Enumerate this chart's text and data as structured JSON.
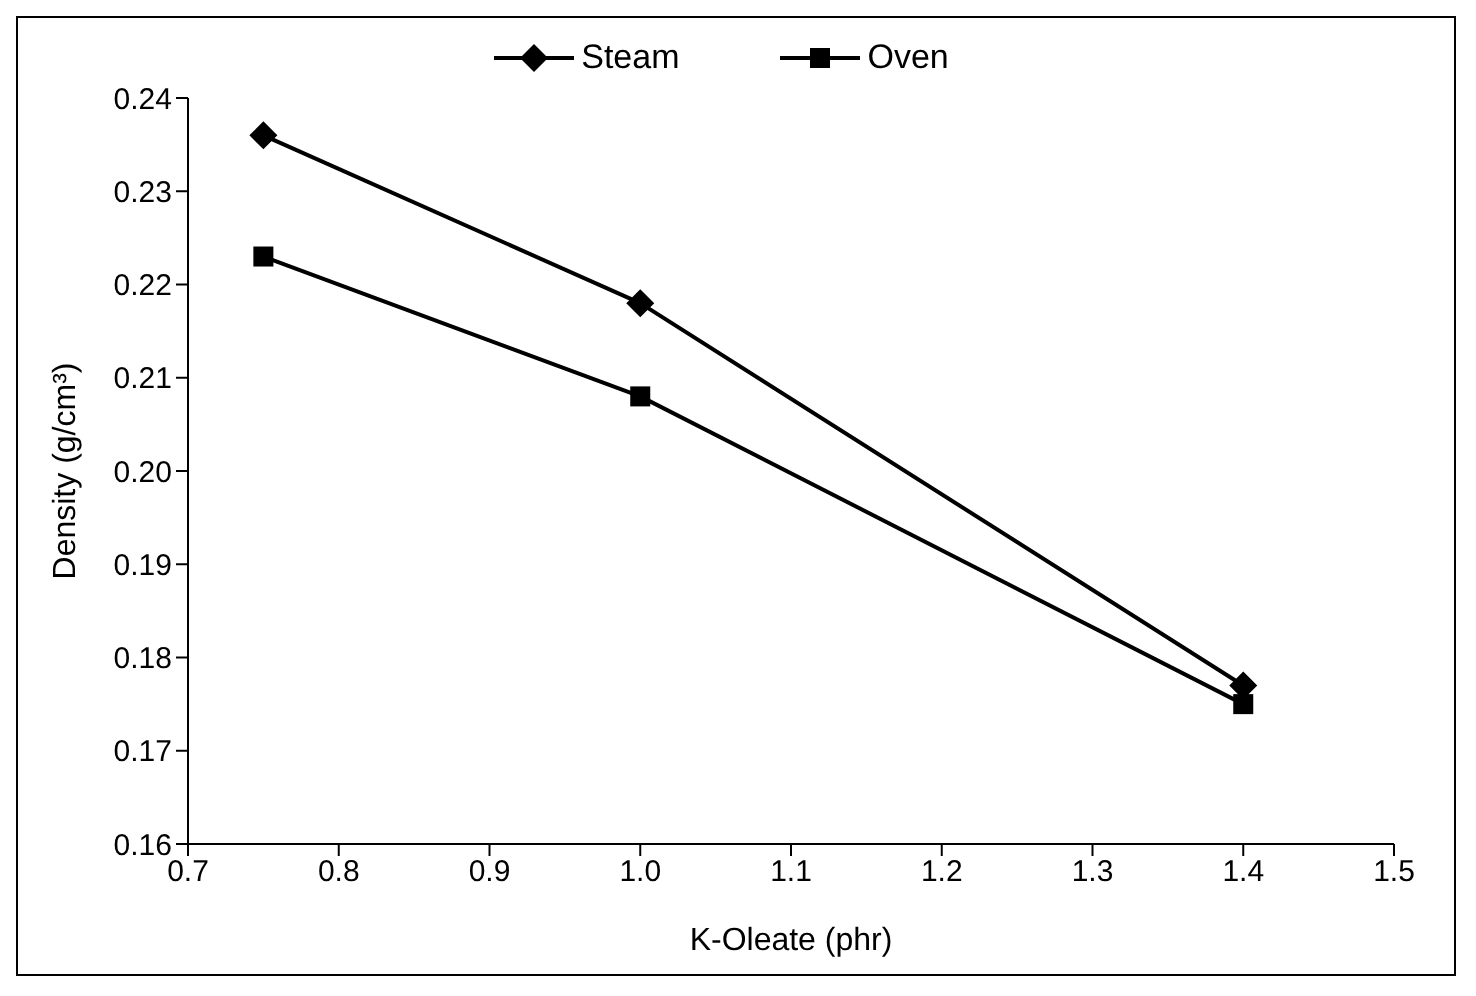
{
  "chart_data": {
    "type": "line",
    "xlabel": "K-Oleate (phr)",
    "ylabel": "Density (g/cm³)",
    "x": [
      0.75,
      1.0,
      1.4
    ],
    "series": [
      {
        "name": "Steam",
        "color": "#000000",
        "marker": "diamond",
        "values": [
          0.236,
          0.218,
          0.177
        ]
      },
      {
        "name": "Oven",
        "color": "#000000",
        "marker": "square",
        "values": [
          0.223,
          0.208,
          0.175
        ]
      }
    ],
    "xlim": [
      0.7,
      1.5
    ],
    "xticks": [
      0.7,
      0.8,
      0.9,
      {
        "value": 1,
        "label": "1.0"
      },
      1.1,
      1.2,
      1.3,
      1.4,
      1.5
    ],
    "ylim": [
      0.16,
      0.24
    ],
    "yticks": [
      0.16,
      0.17,
      0.18,
      0.19,
      {
        "value": 0.2,
        "label": "0.20"
      },
      0.21,
      0.22,
      0.23,
      0.24
    ],
    "grid": false,
    "legend": "top",
    "line_style": "solid"
  }
}
